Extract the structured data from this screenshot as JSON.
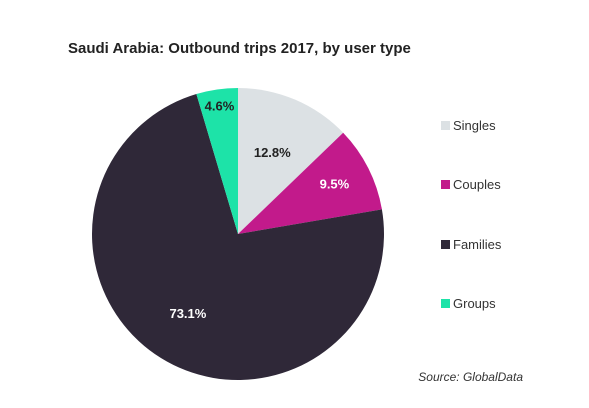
{
  "chart_data": {
    "type": "pie",
    "title": "Saudi Arabia: Outbound trips 2017, by user type",
    "categories": [
      "Singles",
      "Couples",
      "Families",
      "Groups"
    ],
    "values": [
      12.8,
      9.5,
      73.1,
      4.6
    ],
    "value_labels": [
      "12.8%",
      "9.5%",
      "73.1%",
      "4.6%"
    ],
    "colors": [
      "#dce1e4",
      "#c21a8b",
      "#2f2838",
      "#1de3a8"
    ],
    "label_colors": [
      "#222222",
      "#ffffff",
      "#ffffff",
      "#222222"
    ],
    "legend_position": "right",
    "source": "Source: GlobalData"
  }
}
